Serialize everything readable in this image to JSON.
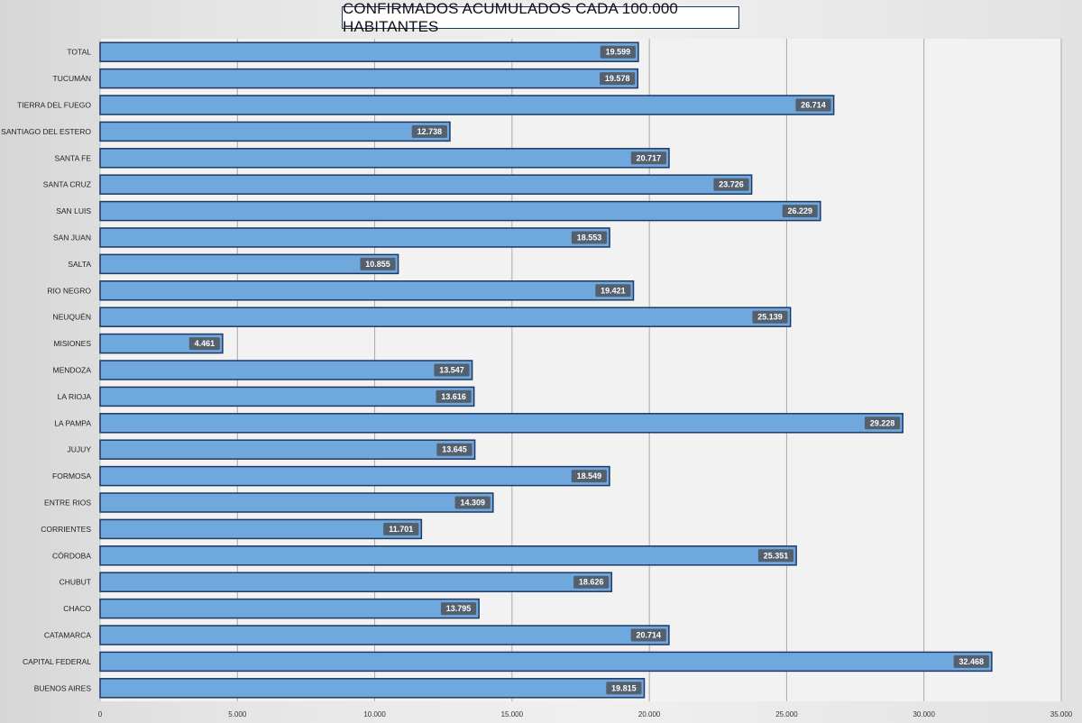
{
  "chart_data": {
    "type": "bar",
    "orientation": "horizontal",
    "title": "CONFIRMADOS ACUMULADOS CADA 100.000 HABITANTES",
    "categories": [
      "TOTAL",
      "TUCUMÁN",
      "TIERRA  DEL FUEGO",
      "SANTIAGO  DEL ESTERO",
      "SANTA FE",
      "SANTA CRUZ",
      "SAN LUIS",
      "SAN JUAN",
      "SALTA",
      "RIO NEGRO",
      "NEUQUÉN",
      "MISIONES",
      "MENDOZA",
      "LA RIOJA",
      "LA PAMPA",
      "JUJUY",
      "FORMOSA",
      "ENTRE RIOS",
      "CORRIENTES",
      "CÓRDOBA",
      "CHUBUT",
      "CHACO",
      "CATAMARCA",
      "CAPITAL FEDERAL",
      "BUENOS  AIRES"
    ],
    "values": [
      19599,
      19578,
      26714,
      12738,
      20717,
      23726,
      26229,
      18553,
      10855,
      19421,
      25139,
      4461,
      13547,
      13616,
      29228,
      13645,
      18549,
      14309,
      11701,
      25351,
      18626,
      13795,
      20714,
      32468,
      19815
    ],
    "value_labels": [
      "19.599",
      "19.578",
      "26.714",
      "12.738",
      "20.717",
      "23.726",
      "26.229",
      "18.553",
      "10.855",
      "19.421",
      "25.139",
      "4.461",
      "13.547",
      "13.616",
      "29.228",
      "13.645",
      "18.549",
      "14.309",
      "11.701",
      "25.351",
      "18.626",
      "13.795",
      "20.714",
      "32.468",
      "19.815"
    ],
    "xlim": [
      0,
      35000
    ],
    "ticks": [
      0,
      5000,
      10000,
      15000,
      20000,
      25000,
      30000,
      35000
    ],
    "tick_labels": [
      "0",
      "5.000",
      "10.000",
      "15.000",
      "20.000",
      "25.000",
      "30.000",
      "35.000"
    ],
    "xlabel": "",
    "ylabel": "",
    "grid": "vertical",
    "legend": "none",
    "colors": {
      "bar": "#6fa8dc",
      "bar_border": "#1f3864",
      "label_bg": "#54606e",
      "label_text": "#ffffff",
      "grid": "#a9a9a9",
      "plot_bg": "#f2f2f2"
    }
  }
}
